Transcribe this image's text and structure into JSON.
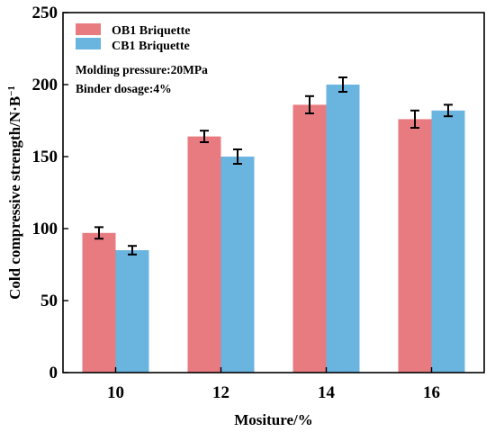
{
  "chart_data": {
    "type": "bar",
    "categories": [
      "10",
      "12",
      "14",
      "16"
    ],
    "series": [
      {
        "name": "OB1 Briquette",
        "color": "#e87b80",
        "values": [
          97,
          164,
          186,
          176
        ],
        "errors": [
          4,
          4,
          6,
          6
        ]
      },
      {
        "name": "CB1 Briquette",
        "color": "#6ab4e0",
        "values": [
          85,
          150,
          200,
          182
        ],
        "errors": [
          3,
          5,
          5,
          4
        ]
      }
    ],
    "xlabel": "Mositure/%",
    "ylabel": "Cold compressive strength/N·B",
    "ylabel_superscript": "−1",
    "ylim": [
      0,
      250
    ],
    "yticks": [
      "0",
      "50",
      "100",
      "150",
      "200",
      "250"
    ],
    "legend_position": "top-left",
    "annotations": [
      "Molding pressure:20MPa",
      "Binder dosage:4%"
    ],
    "grid": false
  }
}
